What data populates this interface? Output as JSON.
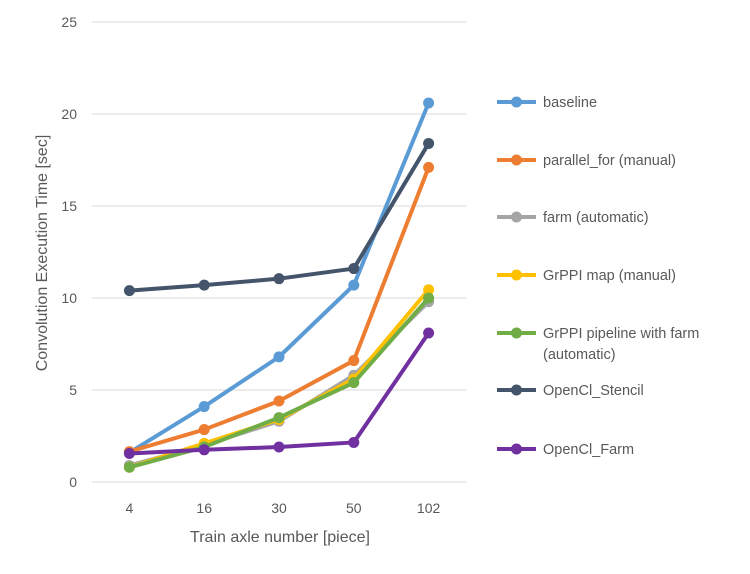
{
  "chart_data": {
    "type": "line",
    "title": "",
    "xlabel": "Train axle number [piece]",
    "ylabel": "Convolution Execution Time [sec]",
    "categories": [
      "4",
      "16",
      "30",
      "50",
      "102"
    ],
    "ylim": [
      0,
      25
    ],
    "yticks": [
      "0",
      "5",
      "10",
      "15",
      "20",
      "25"
    ],
    "grid": "horizontal",
    "legend_position": "right",
    "series": [
      {
        "name": "baseline",
        "color": "#5B9BD5",
        "values": [
          1.6,
          4.1,
          6.8,
          10.7,
          20.6
        ]
      },
      {
        "name": "parallel_for (manual)",
        "color": "#ED7D31",
        "values": [
          1.65,
          2.85,
          4.4,
          6.6,
          17.1
        ]
      },
      {
        "name": "farm (automatic)",
        "color": "#A5A5A5",
        "values": [
          0.9,
          2.0,
          3.3,
          5.8,
          9.8
        ]
      },
      {
        "name": "GrPPI map (manual)",
        "color": "#FFC000",
        "values": [
          0.8,
          2.1,
          3.4,
          5.6,
          10.45
        ]
      },
      {
        "name": "GrPPI pipeline with farm",
        "name_line2": "(automatic)",
        "color": "#70AD47",
        "values": [
          0.8,
          1.9,
          3.5,
          5.4,
          10.0
        ]
      },
      {
        "name": "OpenCl_Stencil",
        "color": "#44546A",
        "values": [
          10.4,
          10.7,
          11.05,
          11.6,
          18.4
        ]
      },
      {
        "name": "OpenCl_Farm",
        "color": "#7030A0",
        "values": [
          1.55,
          1.75,
          1.9,
          2.15,
          8.1
        ]
      }
    ]
  }
}
